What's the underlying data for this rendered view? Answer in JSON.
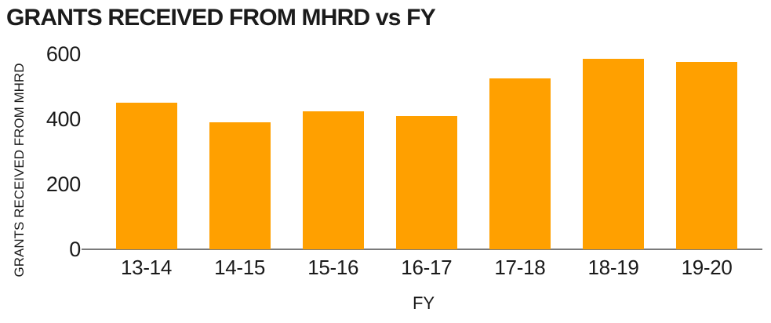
{
  "chart_data": {
    "type": "bar",
    "title": "GRANTS RECEIVED FROM MHRD vs FY",
    "xlabel": "FY",
    "ylabel": "GRANTS RECEIVED FROM MHRD",
    "categories": [
      "13-14",
      "14-15",
      "15-16",
      "16-17",
      "17-18",
      "18-19",
      "19-20"
    ],
    "values": [
      450,
      390,
      425,
      410,
      525,
      585,
      575
    ],
    "yticks": [
      0,
      200,
      400,
      600
    ],
    "ylim": [
      0,
      600
    ],
    "grid": false,
    "legend": false,
    "bar_color": "#FFA000",
    "axis_color": "#7A7A7A",
    "text_color": "#1A1A1A",
    "background": "#FFFFFF"
  }
}
